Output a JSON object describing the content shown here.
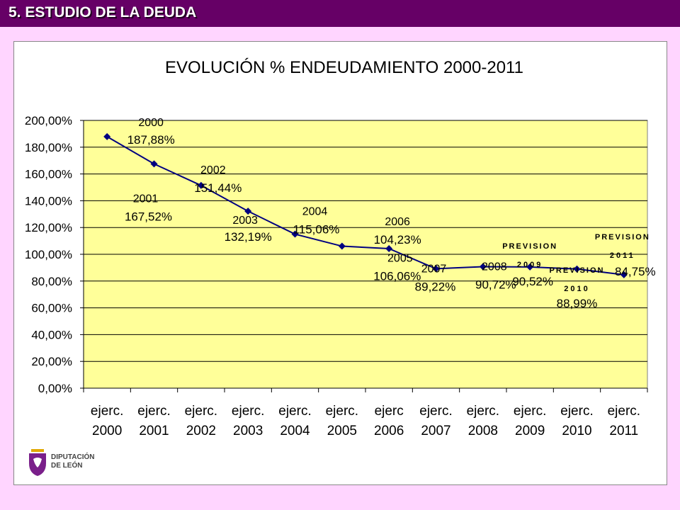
{
  "header": {
    "title": "5. ESTUDIO DE LA DEUDA"
  },
  "logo": {
    "line1": "DIPUTACIÓN",
    "line2": "DE LEÓN"
  },
  "colors": {
    "header_bg": "#660066",
    "page_bg": "#ffd5ff",
    "plot_bg": "#ffff99",
    "series": "#000080"
  },
  "chart_data": {
    "type": "line",
    "title": "EVOLUCIÓN % ENDEUDAMIENTO 2000-2011",
    "xlabel": "",
    "ylabel": "",
    "ylim": [
      0,
      200
    ],
    "yticks": [
      "0,00%",
      "20,00%",
      "40,00%",
      "60,00%",
      "80,00%",
      "100,00%",
      "120,00%",
      "140,00%",
      "160,00%",
      "180,00%",
      "200,00%"
    ],
    "grid": true,
    "categories": [
      [
        "ejerc.",
        "2000"
      ],
      [
        "ejerc.",
        "2001"
      ],
      [
        "ejerc.",
        "2002"
      ],
      [
        "ejerc.",
        "2003"
      ],
      [
        "ejerc.",
        "2004"
      ],
      [
        "ejerc.",
        "2005"
      ],
      [
        "ejerc",
        "2006"
      ],
      [
        "ejerc.",
        "2007"
      ],
      [
        "ejerc.",
        "2008"
      ],
      [
        "ejerc.",
        "2009"
      ],
      [
        "ejerc.",
        "2010"
      ],
      [
        "ejerc.",
        "2011"
      ]
    ],
    "series": [
      {
        "values": [
          187.88,
          167.52,
          151.44,
          132.19,
          115.06,
          106.06,
          104.23,
          89.22,
          90.72,
          90.52,
          88.99,
          84.75
        ]
      }
    ],
    "annotations": [
      {
        "label": "2000",
        "value": "187,88%",
        "index": 0
      },
      {
        "label": "2001",
        "value": "167,52%",
        "index": 1
      },
      {
        "label": "2002",
        "value": "151,44%",
        "index": 2
      },
      {
        "label": "2003",
        "value": "132,19%",
        "index": 3
      },
      {
        "label": "2004",
        "value": "115,06%",
        "index": 4
      },
      {
        "label": "2005",
        "value": "106,06%",
        "index": 5
      },
      {
        "label": "2006",
        "value": "104,23%",
        "index": 6
      },
      {
        "label": "2007",
        "value": "89,22%",
        "index": 7
      },
      {
        "label": "2008",
        "value": "90,72%",
        "index": 8
      },
      {
        "label": "PREVISION",
        "label2": "2009",
        "value": "90,52%",
        "index": 9
      },
      {
        "label": "PREVISION",
        "label2": "2010",
        "value": "88,99%",
        "index": 10
      },
      {
        "label": "PREVISION",
        "label2": "2011",
        "value": "84,75%",
        "index": 11
      }
    ]
  }
}
